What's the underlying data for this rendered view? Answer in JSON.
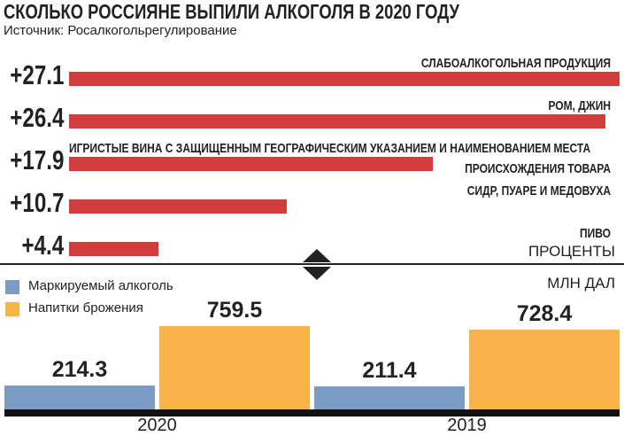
{
  "title": "СКОЛЬКО РОССИЯНЕ ВЫПИЛИ АЛКОГОЛЯ В 2020 ГОДУ",
  "source": "Источник: Росалкогольрегулирование",
  "chart_data": [
    {
      "type": "bar",
      "orientation": "horizontal",
      "unit": "ПРОЦЕНТЫ",
      "categories": [
        "СЛАБОАЛКОГОЛЬНАЯ ПРОДУКЦИЯ",
        "РОМ, ДЖИН",
        "ИГРИСТЫЕ ВИНА С ЗАЩИЩЕННЫМ ГЕОГРАФИЧЕСКИМ УКАЗАНИЕМ И НАИМЕНОВАНИЕМ МЕСТА ПРОИСХОЖДЕНИЯ ТОВАРА",
        "СИДР, ПУАРЕ И МЕДОВУХА",
        "ПИВО"
      ],
      "values": [
        27.1,
        26.4,
        17.9,
        10.7,
        4.4
      ],
      "value_labels": [
        "+27.1",
        "+26.4",
        "+17.9",
        "+10.7",
        "+4.4"
      ],
      "color": "#d43c3c"
    },
    {
      "type": "grouped_bar",
      "unit": "МЛН ДАЛ",
      "categories": [
        "2020",
        "2019"
      ],
      "series": [
        {
          "name": "Маркируемый алкоголь",
          "color": "#7b9bc3",
          "values": [
            214.3,
            211.4
          ]
        },
        {
          "name": "Напитки брожения",
          "color": "#f8b34a",
          "values": [
            759.5,
            728.4
          ]
        }
      ]
    }
  ]
}
